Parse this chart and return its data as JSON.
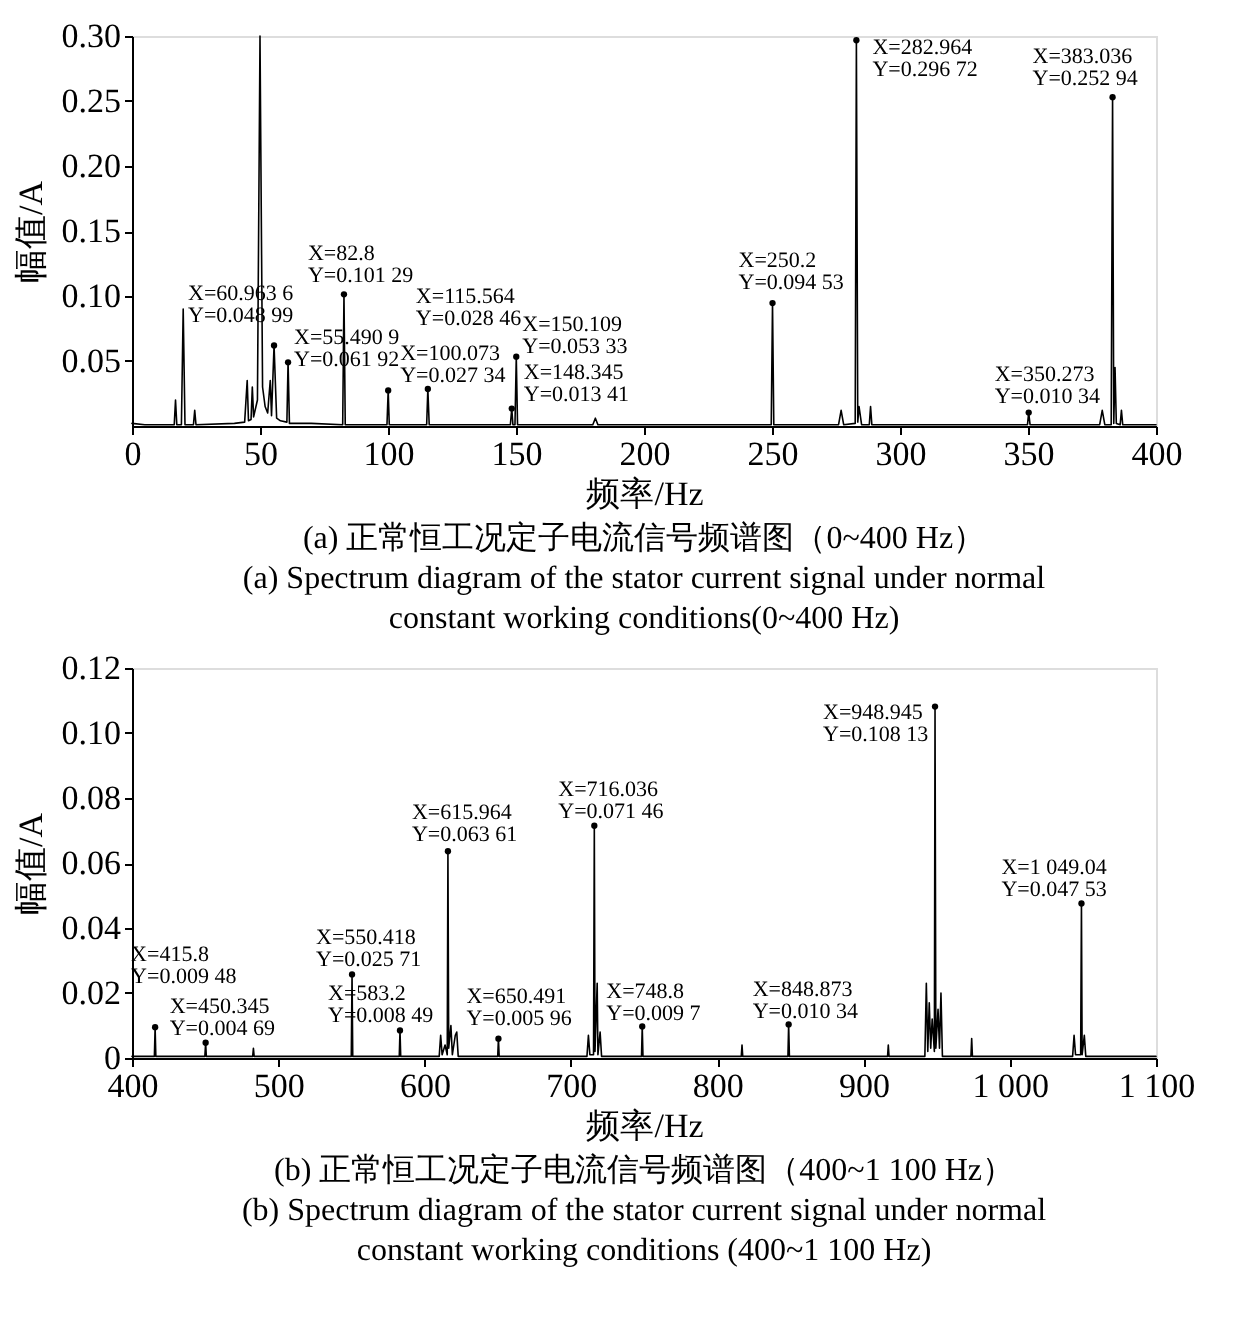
{
  "chart_data": [
    {
      "type": "line",
      "color": "#000000",
      "xlabel": "频率/Hz",
      "ylabel": "幅值/A",
      "grid": false,
      "marker": "none",
      "line_style": "solid",
      "xlim": [
        0,
        400
      ],
      "xticks": [
        0,
        50,
        100,
        150,
        200,
        250,
        300,
        350,
        400
      ],
      "ylim": [
        0,
        0.3
      ],
      "yticks": [
        {
          "value": 0.05,
          "label": "0.05"
        },
        {
          "value": 0.1,
          "label": "0.10"
        },
        {
          "value": 0.15,
          "label": "0.15"
        },
        {
          "value": 0.2,
          "label": "0.20"
        },
        {
          "value": 0.25,
          "label": "0.25"
        },
        {
          "value": 0.3,
          "label": "0.30"
        }
      ],
      "x": [
        0,
        5,
        16.5,
        17,
        17.5,
        19.3,
        20,
        20.7,
        24,
        24.5,
        25,
        40,
        44,
        45,
        45.5,
        46.5,
        47,
        47.5,
        49,
        50,
        51,
        52,
        53,
        54,
        54.5,
        55.4909,
        56.5,
        58,
        60.5,
        60.9636,
        61.5,
        70,
        82.3,
        82.8,
        83.3,
        99.6,
        100.073,
        100.5,
        115.1,
        115.564,
        116.1,
        147.8,
        148.345,
        148.8,
        149.6,
        150.109,
        150.6,
        180,
        181,
        182,
        249.7,
        250.2,
        250.7,
        276,
        277,
        278,
        282.5,
        282.964,
        283.5,
        284,
        285,
        288,
        288.5,
        289,
        349.8,
        350.273,
        350.8,
        378,
        379,
        380,
        382.5,
        383.036,
        383.5,
        384,
        384.5,
        386,
        386.5,
        387,
        400
      ],
      "values": [
        0.002,
        0.001,
        0.001,
        0.02,
        0.001,
        0.001,
        0.09,
        0.001,
        0.001,
        0.012,
        0.001,
        0.002,
        0.003,
        0.035,
        0.004,
        0.005,
        0.03,
        0.007,
        0.02,
        0.3,
        0.03,
        0.015,
        0.01,
        0.035,
        0.008,
        0.06192,
        0.006,
        0.004,
        0.003,
        0.04899,
        0.002,
        0.002,
        0.001,
        0.10129,
        0.001,
        0.001,
        0.02734,
        0.001,
        0.001,
        0.02846,
        0.001,
        0.001,
        0.01341,
        0.001,
        0.001,
        0.05333,
        0.001,
        0.001,
        0.006,
        0.001,
        0.001,
        0.09453,
        0.001,
        0.001,
        0.012,
        0.001,
        0.002,
        0.29672,
        0.003,
        0.015,
        0.001,
        0.001,
        0.015,
        0.001,
        0.001,
        0.01034,
        0.001,
        0.001,
        0.012,
        0.001,
        0.001,
        0.25294,
        0.002,
        0.045,
        0.002,
        0.001,
        0.012,
        0.001,
        0.001
      ],
      "annotations": [
        {
          "text": "X=55.490 9\nY=0.061 92",
          "x": 55.4909,
          "y": 0.06192
        },
        {
          "text": "X=60.963 6\nY=0.048 99",
          "x": 60.9636,
          "y": 0.04899
        },
        {
          "text": "X=82.8\nY=0.101 29",
          "x": 82.8,
          "y": 0.10129
        },
        {
          "text": "X=100.073\nY=0.027 34",
          "x": 100.073,
          "y": 0.02734
        },
        {
          "text": "X=115.564\nY=0.028 46",
          "x": 115.564,
          "y": 0.02846
        },
        {
          "text": "X=148.345\nY=0.013 41",
          "x": 148.345,
          "y": 0.01341
        },
        {
          "text": "X=150.109\nY=0.053 33",
          "x": 150.109,
          "y": 0.05333
        },
        {
          "text": "X=250.2\nY=0.094 53",
          "x": 250.2,
          "y": 0.09453
        },
        {
          "text": "X=282.964\nY=0.296 72",
          "x": 282.964,
          "y": 0.29672
        },
        {
          "text": "X=350.273\nY=0.010 34",
          "x": 350.273,
          "y": 0.01034
        },
        {
          "text": "X=383.036\nY=0.252 94",
          "x": 383.036,
          "y": 0.25294
        },
        "(a) 正常恒工况定子电流信号频谱图（0~400 Hz）",
        "(a) Spectrum diagram of the stator current signal under normal",
        "constant working conditions(0~400 Hz)"
      ]
    },
    {
      "type": "line",
      "color": "#000000",
      "xlabel": "频率/Hz",
      "ylabel": "幅值/A",
      "grid": false,
      "marker": "none",
      "line_style": "solid",
      "xlim": [
        400,
        1100
      ],
      "xticks": [
        400,
        500,
        600,
        700,
        800,
        900,
        {
          "value": 1000,
          "label": "1 000"
        },
        {
          "value": 1100,
          "label": "1 100"
        }
      ],
      "ylim": [
        0,
        0.12
      ],
      "yticks": [
        0,
        0.02,
        0.04,
        0.06,
        0.08,
        {
          "value": 0.1,
          "label": "0.10"
        },
        0.12
      ],
      "x": [
        400,
        415.3,
        415.8,
        416.3,
        449.8,
        450.345,
        450.8,
        482.5,
        483,
        483.5,
        549.9,
        550.418,
        550.9,
        582.7,
        583.2,
        583.7,
        610,
        611,
        612,
        614,
        615.5,
        615.964,
        616.5,
        618,
        619,
        621,
        622,
        623,
        650,
        650.491,
        651,
        711,
        712,
        713,
        715.5,
        716.036,
        716.5,
        718,
        718.5,
        720,
        721,
        748.3,
        748.8,
        749.3,
        816.5,
        817,
        817.5,
        848.4,
        848.873,
        849.4,
        916.5,
        917,
        917.5,
        942,
        943,
        944,
        945,
        946,
        947,
        948.5,
        948.945,
        949.5,
        951,
        952,
        953,
        954,
        973.5,
        974,
        974.5,
        1043,
        1044,
        1045,
        1048.5,
        1049.04,
        1049.5,
        1051,
        1052,
        1100
      ],
      "values": [
        0.0005,
        0.0005,
        0.00948,
        0.0005,
        0.0005,
        0.00469,
        0.0005,
        0.0005,
        0.003,
        0.0005,
        0.0005,
        0.02571,
        0.0005,
        0.0005,
        0.00849,
        0.0005,
        0.0005,
        0.007,
        0.001,
        0.004,
        0.001,
        0.06361,
        0.003,
        0.01,
        0.001,
        0.007,
        0.008,
        0.0005,
        0.0005,
        0.00596,
        0.0005,
        0.0005,
        0.007,
        0.001,
        0.001,
        0.07146,
        0.002,
        0.023,
        0.001,
        0.008,
        0.0005,
        0.0005,
        0.0097,
        0.0005,
        0.0005,
        0.004,
        0.0005,
        0.0005,
        0.01034,
        0.0005,
        0.0005,
        0.004,
        0.0005,
        0.0005,
        0.023,
        0.002,
        0.017,
        0.003,
        0.012,
        0.002,
        0.10813,
        0.003,
        0.015,
        0.003,
        0.02,
        0.0005,
        0.0005,
        0.006,
        0.0005,
        0.0005,
        0.007,
        0.001,
        0.001,
        0.04753,
        0.001,
        0.007,
        0.0005,
        0.0005
      ],
      "annotations": [
        {
          "text": "X=415.8\nY=0.009 48",
          "x": 415.8,
          "y": 0.00948
        },
        {
          "text": "X=450.345\nY=0.004 69",
          "x": 450.345,
          "y": 0.00469
        },
        {
          "text": "X=550.418\nY=0.025 71",
          "x": 550.418,
          "y": 0.02571
        },
        {
          "text": "X=583.2\nY=0.008 49",
          "x": 583.2,
          "y": 0.00849
        },
        {
          "text": "X=615.964\nY=0.063 61",
          "x": 615.964,
          "y": 0.06361
        },
        {
          "text": "X=650.491\nY=0.005 96",
          "x": 650.491,
          "y": 0.00596
        },
        {
          "text": "X=716.036\nY=0.071 46",
          "x": 716.036,
          "y": 0.07146
        },
        {
          "text": "X=748.8\nY=0.009 7",
          "x": 748.8,
          "y": 0.0097
        },
        {
          "text": "X=848.873\nY=0.010 34",
          "x": 848.873,
          "y": 0.01034
        },
        {
          "text": "X=948.945\nY=0.108 13",
          "x": 948.945,
          "y": 0.10813
        },
        {
          "text": "X=1 049.04\nY=0.047 53",
          "x": 1049.04,
          "y": 0.04753
        },
        "(b) 正常恒工况定子电流信号频谱图（400~1 100 Hz）",
        "(b) Spectrum diagram of the stator current signal under normal",
        "constant working conditions (400~1 100 Hz)"
      ]
    }
  ]
}
